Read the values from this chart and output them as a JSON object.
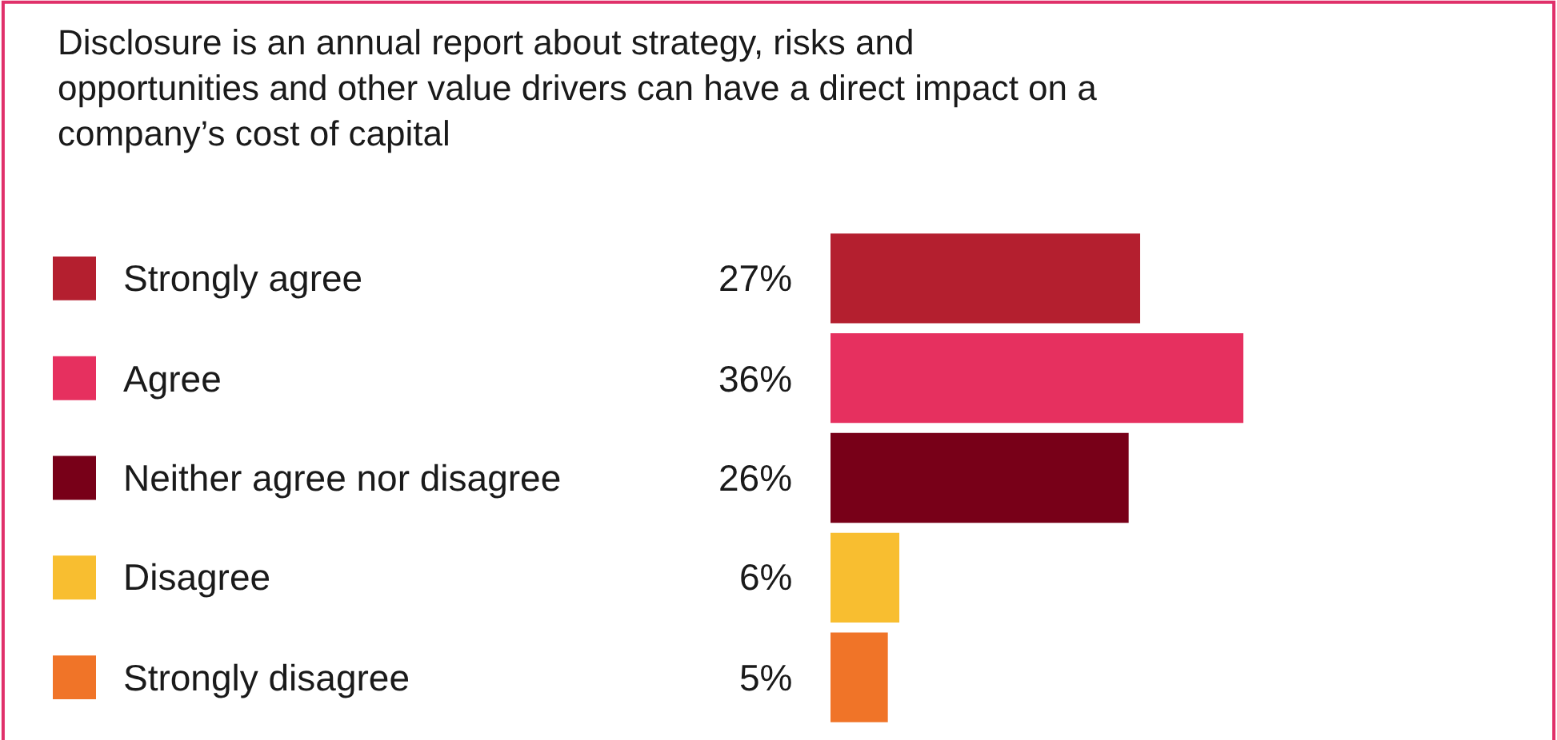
{
  "chart_data": {
    "type": "bar",
    "orientation": "horizontal",
    "title": "Disclosure is an annual report about strategy, risks and opportunities and other value drivers can have a direct impact on a company’s cost of capital",
    "categories": [
      "Strongly agree",
      "Agree",
      "Neither agree nor disagree",
      "Disagree",
      "Strongly disagree"
    ],
    "values": [
      27,
      36,
      26,
      6,
      5
    ],
    "colors": [
      "#b41f2f",
      "#e6305f",
      "#780018",
      "#f8be30",
      "#f07428"
    ],
    "value_labels": [
      "27%",
      "36%",
      "26%",
      "6%",
      "5%"
    ]
  }
}
